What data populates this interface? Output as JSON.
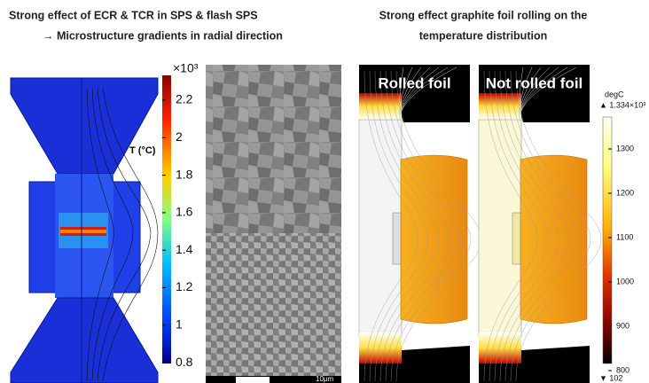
{
  "left": {
    "title": "Strong effect of ECR & TCR in SPS & flash SPS",
    "subtitle": "→ Microstructure gradients in radial direction",
    "colorbar": {
      "multiplier": "×10³",
      "label": "T (°C)",
      "ticks": [
        2.2,
        2,
        1.8,
        1.6,
        1.4,
        1.2,
        1,
        0.8
      ]
    },
    "micrograph": {
      "scale_bar": "10µm"
    }
  },
  "right": {
    "title": "Strong effect graphite foil rolling on the",
    "subtitle": "temperature distribution",
    "panels": [
      "Rolled foil",
      "Not rolled foil"
    ],
    "colorbar": {
      "unit": "degC",
      "max": "▲ 1.334×10³",
      "min": "▼ 102",
      "ticks": [
        1300,
        1200,
        1100,
        1000,
        900,
        800
      ]
    }
  }
}
